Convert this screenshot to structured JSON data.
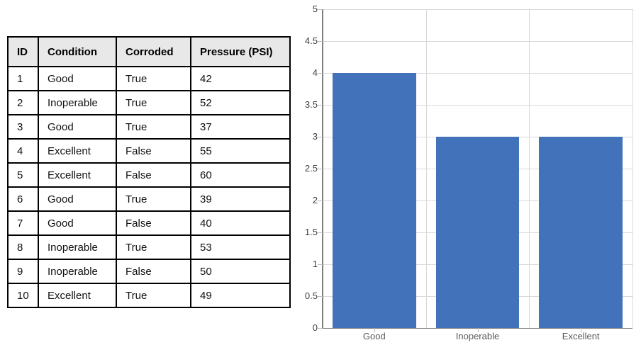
{
  "table": {
    "headers": [
      "ID",
      "Condition",
      "Corroded",
      "Pressure (PSI)"
    ],
    "rows": [
      [
        "1",
        "Good",
        "True",
        "42"
      ],
      [
        "2",
        "Inoperable",
        "True",
        "52"
      ],
      [
        "3",
        "Good",
        "True",
        "37"
      ],
      [
        "4",
        "Excellent",
        "False",
        "55"
      ],
      [
        "5",
        "Excellent",
        "False",
        "60"
      ],
      [
        "6",
        "Good",
        "True",
        "39"
      ],
      [
        "7",
        "Good",
        "False",
        "40"
      ],
      [
        "8",
        "Inoperable",
        "True",
        "53"
      ],
      [
        "9",
        "Inoperable",
        "False",
        "50"
      ],
      [
        "10",
        "Excellent",
        "True",
        "49"
      ]
    ],
    "header_bg": "#E8E8E8",
    "border_color": "#000000"
  },
  "chart_data": {
    "type": "bar",
    "categories": [
      "Good",
      "Inoperable",
      "Excellent"
    ],
    "values": [
      4,
      3,
      3
    ],
    "title": "",
    "xlabel": "",
    "ylabel": "",
    "ylim": [
      0,
      5
    ],
    "ytick_step": 0.5,
    "yticks": [
      "5",
      "4.5",
      "4",
      "3.5",
      "3",
      "2.5",
      "2",
      "1.5",
      "1",
      "0.5",
      "0"
    ],
    "grid": true,
    "legend": false,
    "bar_color": "#4272B9",
    "gridline_color": "#D9D9D9",
    "axis_color": "#7F7F7F",
    "tick_color": "#BFBFBF",
    "tick_label_color": "#3F3F3F",
    "category_label_color": "#595959"
  }
}
